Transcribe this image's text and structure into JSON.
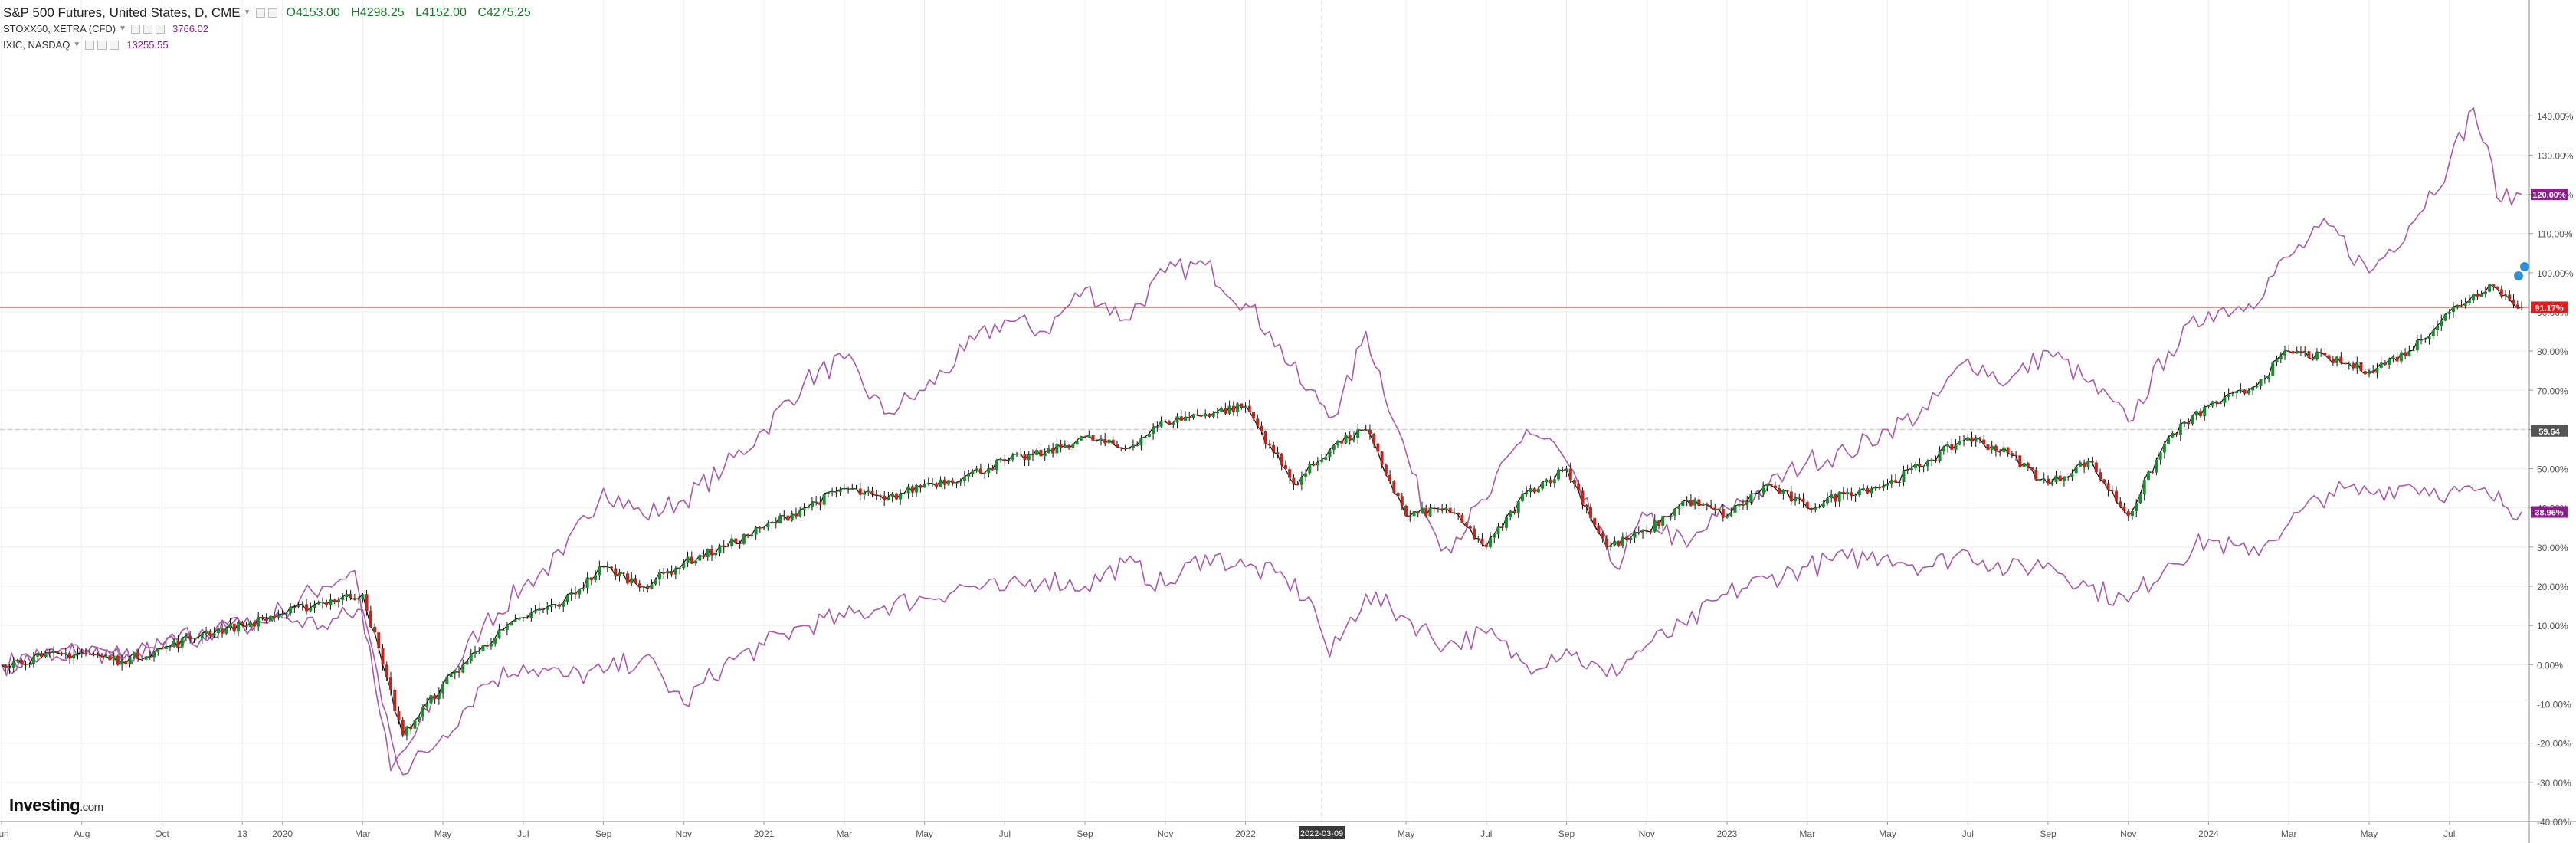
{
  "legend": {
    "main": {
      "title": "S&P 500 Futures, United States, D, CME",
      "o_label": "O",
      "o": "4153.00",
      "h_label": "H",
      "h": "4298.25",
      "l_label": "L",
      "l": "4152.00",
      "c_label": "C",
      "c": "4275.25"
    },
    "compare": [
      {
        "name": "STOXX50, XETRA (CFD)",
        "value": "3766.02"
      },
      {
        "name": "IXIC, NASDAQ",
        "value": "13255.55"
      }
    ]
  },
  "brand": {
    "name": "Investing",
    "suffix": ".com"
  },
  "colors": {
    "compare_line": "#a85aa8",
    "candle_up": "#1e8a2e",
    "candle_down": "#c0261d",
    "price_line": "#f06060",
    "label_purple": "#8b1f8b",
    "label_red": "#e8191a",
    "label_gray": "#555555",
    "grid": "#eeeeee",
    "cursor_label": "#3a3a3a",
    "marker_blue": "#2b8fd8"
  },
  "chart_data": {
    "type": "line",
    "ylabel": "",
    "ylim": [
      -40,
      150
    ],
    "y_ticks": [
      "140.00%",
      "130.00%",
      "120.00%",
      "110.00%",
      "100.00%",
      "90.00%",
      "80.00%",
      "70.00%",
      "60.00%",
      "50.00%",
      "40.00%",
      "30.00%",
      "20.00%",
      "10.00%",
      "0.00%",
      "-10.00%",
      "-20.00%",
      "-30.00%",
      "-40.00%"
    ],
    "y_tick_values": [
      140,
      130,
      120,
      110,
      100,
      90,
      80,
      70,
      60,
      50,
      40,
      30,
      20,
      10,
      0,
      -10,
      -20,
      -30,
      -40
    ],
    "x_ticks": [
      "Jun",
      "Aug",
      "Oct",
      "13",
      "2020",
      "Mar",
      "May",
      "Jul",
      "Sep",
      "Nov",
      "2021",
      "Mar",
      "May",
      "Jul",
      "Sep",
      "Nov",
      "2022",
      "May",
      "Jul",
      "Sep",
      "Nov",
      "2023",
      "Mar",
      "May",
      "Jul",
      "Sep",
      "Nov",
      "2024",
      "Mar",
      "May",
      "Jul"
    ],
    "x_tick_months": [
      0,
      2,
      4,
      6,
      7,
      9,
      11,
      13,
      15,
      17,
      19,
      21,
      23,
      25,
      27,
      29,
      31,
      35,
      37,
      39,
      41,
      43,
      45,
      47,
      49,
      51,
      53,
      55,
      57,
      59,
      61
    ],
    "x_range_months": [
      0,
      62.8
    ],
    "cursor": {
      "month": 32.9,
      "label": "2022-03-09"
    },
    "value_labels": [
      {
        "text": "120.00%",
        "value": 120,
        "kind": "purple"
      },
      {
        "text": "91.17%",
        "value": 91.17,
        "kind": "red"
      },
      {
        "text": "59.64",
        "value": 59.64,
        "kind": "gray"
      },
      {
        "text": "38.96%",
        "value": 38.96,
        "kind": "purple"
      }
    ],
    "price_line_value": 91.17,
    "dashed_line_value": 60,
    "series": [
      {
        "name": "IXIC, NASDAQ",
        "style": "line",
        "points": [
          [
            0,
            0
          ],
          [
            1,
            2
          ],
          [
            2,
            4
          ],
          [
            3,
            2
          ],
          [
            4,
            4
          ],
          [
            5,
            7
          ],
          [
            6,
            10
          ],
          [
            7,
            14
          ],
          [
            8,
            20
          ],
          [
            8.8,
            24
          ],
          [
            9.3,
            -5
          ],
          [
            9.7,
            -27
          ],
          [
            10.3,
            -18
          ],
          [
            11,
            -5
          ],
          [
            12,
            10
          ],
          [
            13,
            20
          ],
          [
            14,
            28
          ],
          [
            15,
            45
          ],
          [
            16,
            38
          ],
          [
            17,
            42
          ],
          [
            18,
            50
          ],
          [
            19,
            60
          ],
          [
            20,
            72
          ],
          [
            21,
            78
          ],
          [
            22,
            64
          ],
          [
            23,
            70
          ],
          [
            24,
            80
          ],
          [
            25,
            88
          ],
          [
            26,
            85
          ],
          [
            27,
            96
          ],
          [
            28,
            88
          ],
          [
            29,
            100
          ],
          [
            30,
            102
          ],
          [
            31,
            92
          ],
          [
            31.6,
            85
          ],
          [
            32.5,
            70
          ],
          [
            33.3,
            64
          ],
          [
            34,
            85
          ],
          [
            34.8,
            60
          ],
          [
            35.5,
            38
          ],
          [
            36,
            30
          ],
          [
            37,
            42
          ],
          [
            38,
            60
          ],
          [
            38.8,
            55
          ],
          [
            39.4,
            42
          ],
          [
            40.2,
            25
          ],
          [
            41,
            38
          ],
          [
            42,
            30
          ],
          [
            43,
            40
          ],
          [
            44,
            45
          ],
          [
            45,
            52
          ],
          [
            46,
            54
          ],
          [
            47,
            60
          ],
          [
            48,
            65
          ],
          [
            49,
            78
          ],
          [
            50,
            72
          ],
          [
            51,
            80
          ],
          [
            52,
            72
          ],
          [
            53,
            62
          ],
          [
            54,
            80
          ],
          [
            55,
            90
          ],
          [
            56,
            92
          ],
          [
            57,
            104
          ],
          [
            58,
            112
          ],
          [
            59,
            100
          ],
          [
            60,
            112
          ],
          [
            61,
            128
          ],
          [
            61.6,
            142
          ],
          [
            62.3,
            118
          ],
          [
            62.8,
            120
          ]
        ]
      },
      {
        "name": "STOXX50, XETRA (CFD)",
        "style": "line",
        "points": [
          [
            0,
            0
          ],
          [
            1,
            2
          ],
          [
            2,
            3
          ],
          [
            3,
            1
          ],
          [
            4,
            5
          ],
          [
            5,
            9
          ],
          [
            6,
            10
          ],
          [
            7,
            12
          ],
          [
            8,
            10
          ],
          [
            9,
            14
          ],
          [
            9.6,
            -13
          ],
          [
            10,
            -28
          ],
          [
            11,
            -18
          ],
          [
            12,
            -5
          ],
          [
            13,
            0
          ],
          [
            14,
            -3
          ],
          [
            15,
            -2
          ],
          [
            16,
            2
          ],
          [
            17,
            -10
          ],
          [
            18,
            0
          ],
          [
            19,
            5
          ],
          [
            20,
            10
          ],
          [
            21,
            12
          ],
          [
            22,
            15
          ],
          [
            23,
            17
          ],
          [
            24,
            20
          ],
          [
            25,
            19
          ],
          [
            26,
            22
          ],
          [
            27,
            20
          ],
          [
            28,
            26
          ],
          [
            29,
            20
          ],
          [
            30,
            28
          ],
          [
            31,
            25
          ],
          [
            32,
            22
          ],
          [
            32.7,
            15
          ],
          [
            33.1,
            2
          ],
          [
            34,
            18
          ],
          [
            35,
            12
          ],
          [
            36,
            5
          ],
          [
            37,
            8
          ],
          [
            38,
            0
          ],
          [
            39,
            4
          ],
          [
            40,
            -3
          ],
          [
            41,
            5
          ],
          [
            42,
            10
          ],
          [
            43,
            18
          ],
          [
            44,
            22
          ],
          [
            45,
            25
          ],
          [
            46,
            27
          ],
          [
            47,
            28
          ],
          [
            48,
            25
          ],
          [
            49,
            29
          ],
          [
            50,
            24
          ],
          [
            51,
            26
          ],
          [
            52,
            20
          ],
          [
            53,
            16
          ],
          [
            54,
            26
          ],
          [
            55,
            32
          ],
          [
            56,
            28
          ],
          [
            57,
            36
          ],
          [
            58,
            44
          ],
          [
            59,
            44
          ],
          [
            60,
            46
          ],
          [
            61,
            44
          ],
          [
            62,
            43
          ],
          [
            62.8,
            38.96
          ]
        ]
      },
      {
        "name": "S&P 500 Futures, United States, D, CME",
        "style": "candle",
        "points": [
          [
            0,
            0
          ],
          [
            1,
            2
          ],
          [
            2,
            3
          ],
          [
            3,
            1
          ],
          [
            4,
            4
          ],
          [
            5,
            8
          ],
          [
            6,
            10
          ],
          [
            7,
            13
          ],
          [
            8,
            16
          ],
          [
            9,
            18
          ],
          [
            9.5,
            0
          ],
          [
            10,
            -18
          ],
          [
            11,
            -5
          ],
          [
            12,
            5
          ],
          [
            13,
            12
          ],
          [
            14,
            16
          ],
          [
            15,
            25
          ],
          [
            16,
            20
          ],
          [
            17,
            26
          ],
          [
            18,
            30
          ],
          [
            19,
            35
          ],
          [
            20,
            40
          ],
          [
            21,
            45
          ],
          [
            22,
            42
          ],
          [
            23,
            46
          ],
          [
            24,
            48
          ],
          [
            25,
            52
          ],
          [
            26,
            54
          ],
          [
            27,
            58
          ],
          [
            28,
            55
          ],
          [
            29,
            62
          ],
          [
            30,
            64
          ],
          [
            31,
            66
          ],
          [
            31.6,
            56
          ],
          [
            32.2,
            46
          ],
          [
            33.2,
            56
          ],
          [
            34,
            60
          ],
          [
            35,
            38
          ],
          [
            36,
            40
          ],
          [
            37,
            30
          ],
          [
            38,
            44
          ],
          [
            39,
            50
          ],
          [
            40,
            30
          ],
          [
            41,
            34
          ],
          [
            42,
            42
          ],
          [
            43,
            38
          ],
          [
            44,
            46
          ],
          [
            45,
            40
          ],
          [
            46,
            44
          ],
          [
            47,
            46
          ],
          [
            48,
            52
          ],
          [
            49,
            58
          ],
          [
            50,
            54
          ],
          [
            51,
            46
          ],
          [
            52,
            52
          ],
          [
            53,
            38
          ],
          [
            54,
            58
          ],
          [
            55,
            66
          ],
          [
            56,
            70
          ],
          [
            57,
            80
          ],
          [
            58,
            78
          ],
          [
            59,
            75
          ],
          [
            60,
            80
          ],
          [
            61,
            90
          ],
          [
            62,
            97
          ],
          [
            62.8,
            91.17
          ]
        ]
      }
    ]
  }
}
